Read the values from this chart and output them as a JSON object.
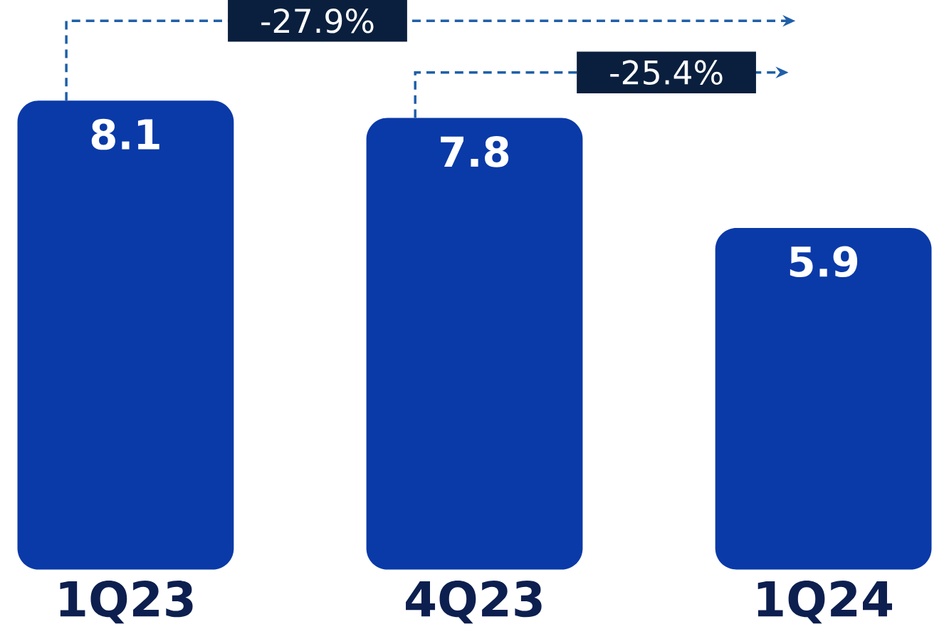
{
  "chart_data": {
    "type": "bar",
    "categories": [
      "1Q23",
      "4Q23",
      "1Q24"
    ],
    "values": [
      8.1,
      7.8,
      5.9
    ],
    "color": "#0a3aa8",
    "data_labels": true,
    "annotations": [
      "-27.9%",
      "-25.4%"
    ]
  }
}
